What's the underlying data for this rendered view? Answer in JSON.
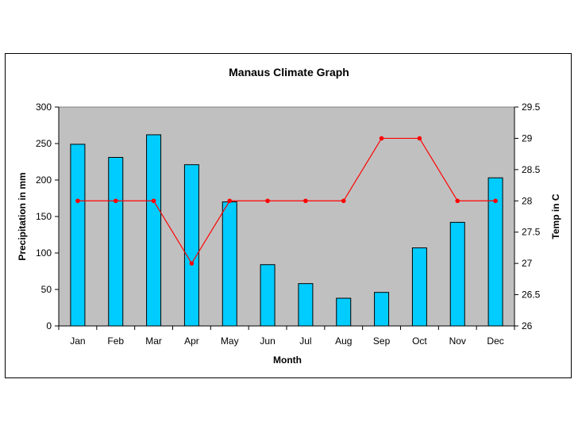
{
  "chart_data": {
    "type": "bar+line",
    "title": "Manaus Climate Graph",
    "xlabel": "Month",
    "ylabel_left": "Precipitation in mm",
    "ylabel_right": "Temp in  C",
    "categories": [
      "Jan",
      "Feb",
      "Mar",
      "Apr",
      "May",
      "Jun",
      "Jul",
      "Aug",
      "Sep",
      "Oct",
      "Nov",
      "Dec"
    ],
    "series": [
      {
        "kind": "bar",
        "axis": "left",
        "color": "#00ccff",
        "values": [
          249,
          231,
          262,
          221,
          170,
          84,
          58,
          38,
          46,
          107,
          142,
          203
        ]
      },
      {
        "kind": "line",
        "axis": "right",
        "color": "#ff0000",
        "values": [
          28,
          28,
          28,
          27,
          28,
          28,
          28,
          28,
          29,
          29,
          28,
          28
        ]
      }
    ],
    "ylim_left": [
      0,
      300
    ],
    "yticks_left": [
      "0",
      "50",
      "100",
      "150",
      "200",
      "250",
      "300"
    ],
    "ylim_right": [
      26,
      29.5
    ],
    "yticks_right": [
      "26",
      "26.5",
      "27",
      "27.5",
      "28",
      "28.5",
      "29",
      "29.5"
    ],
    "plot_background": "#c0c0c0",
    "grid": false,
    "legend": "none"
  }
}
